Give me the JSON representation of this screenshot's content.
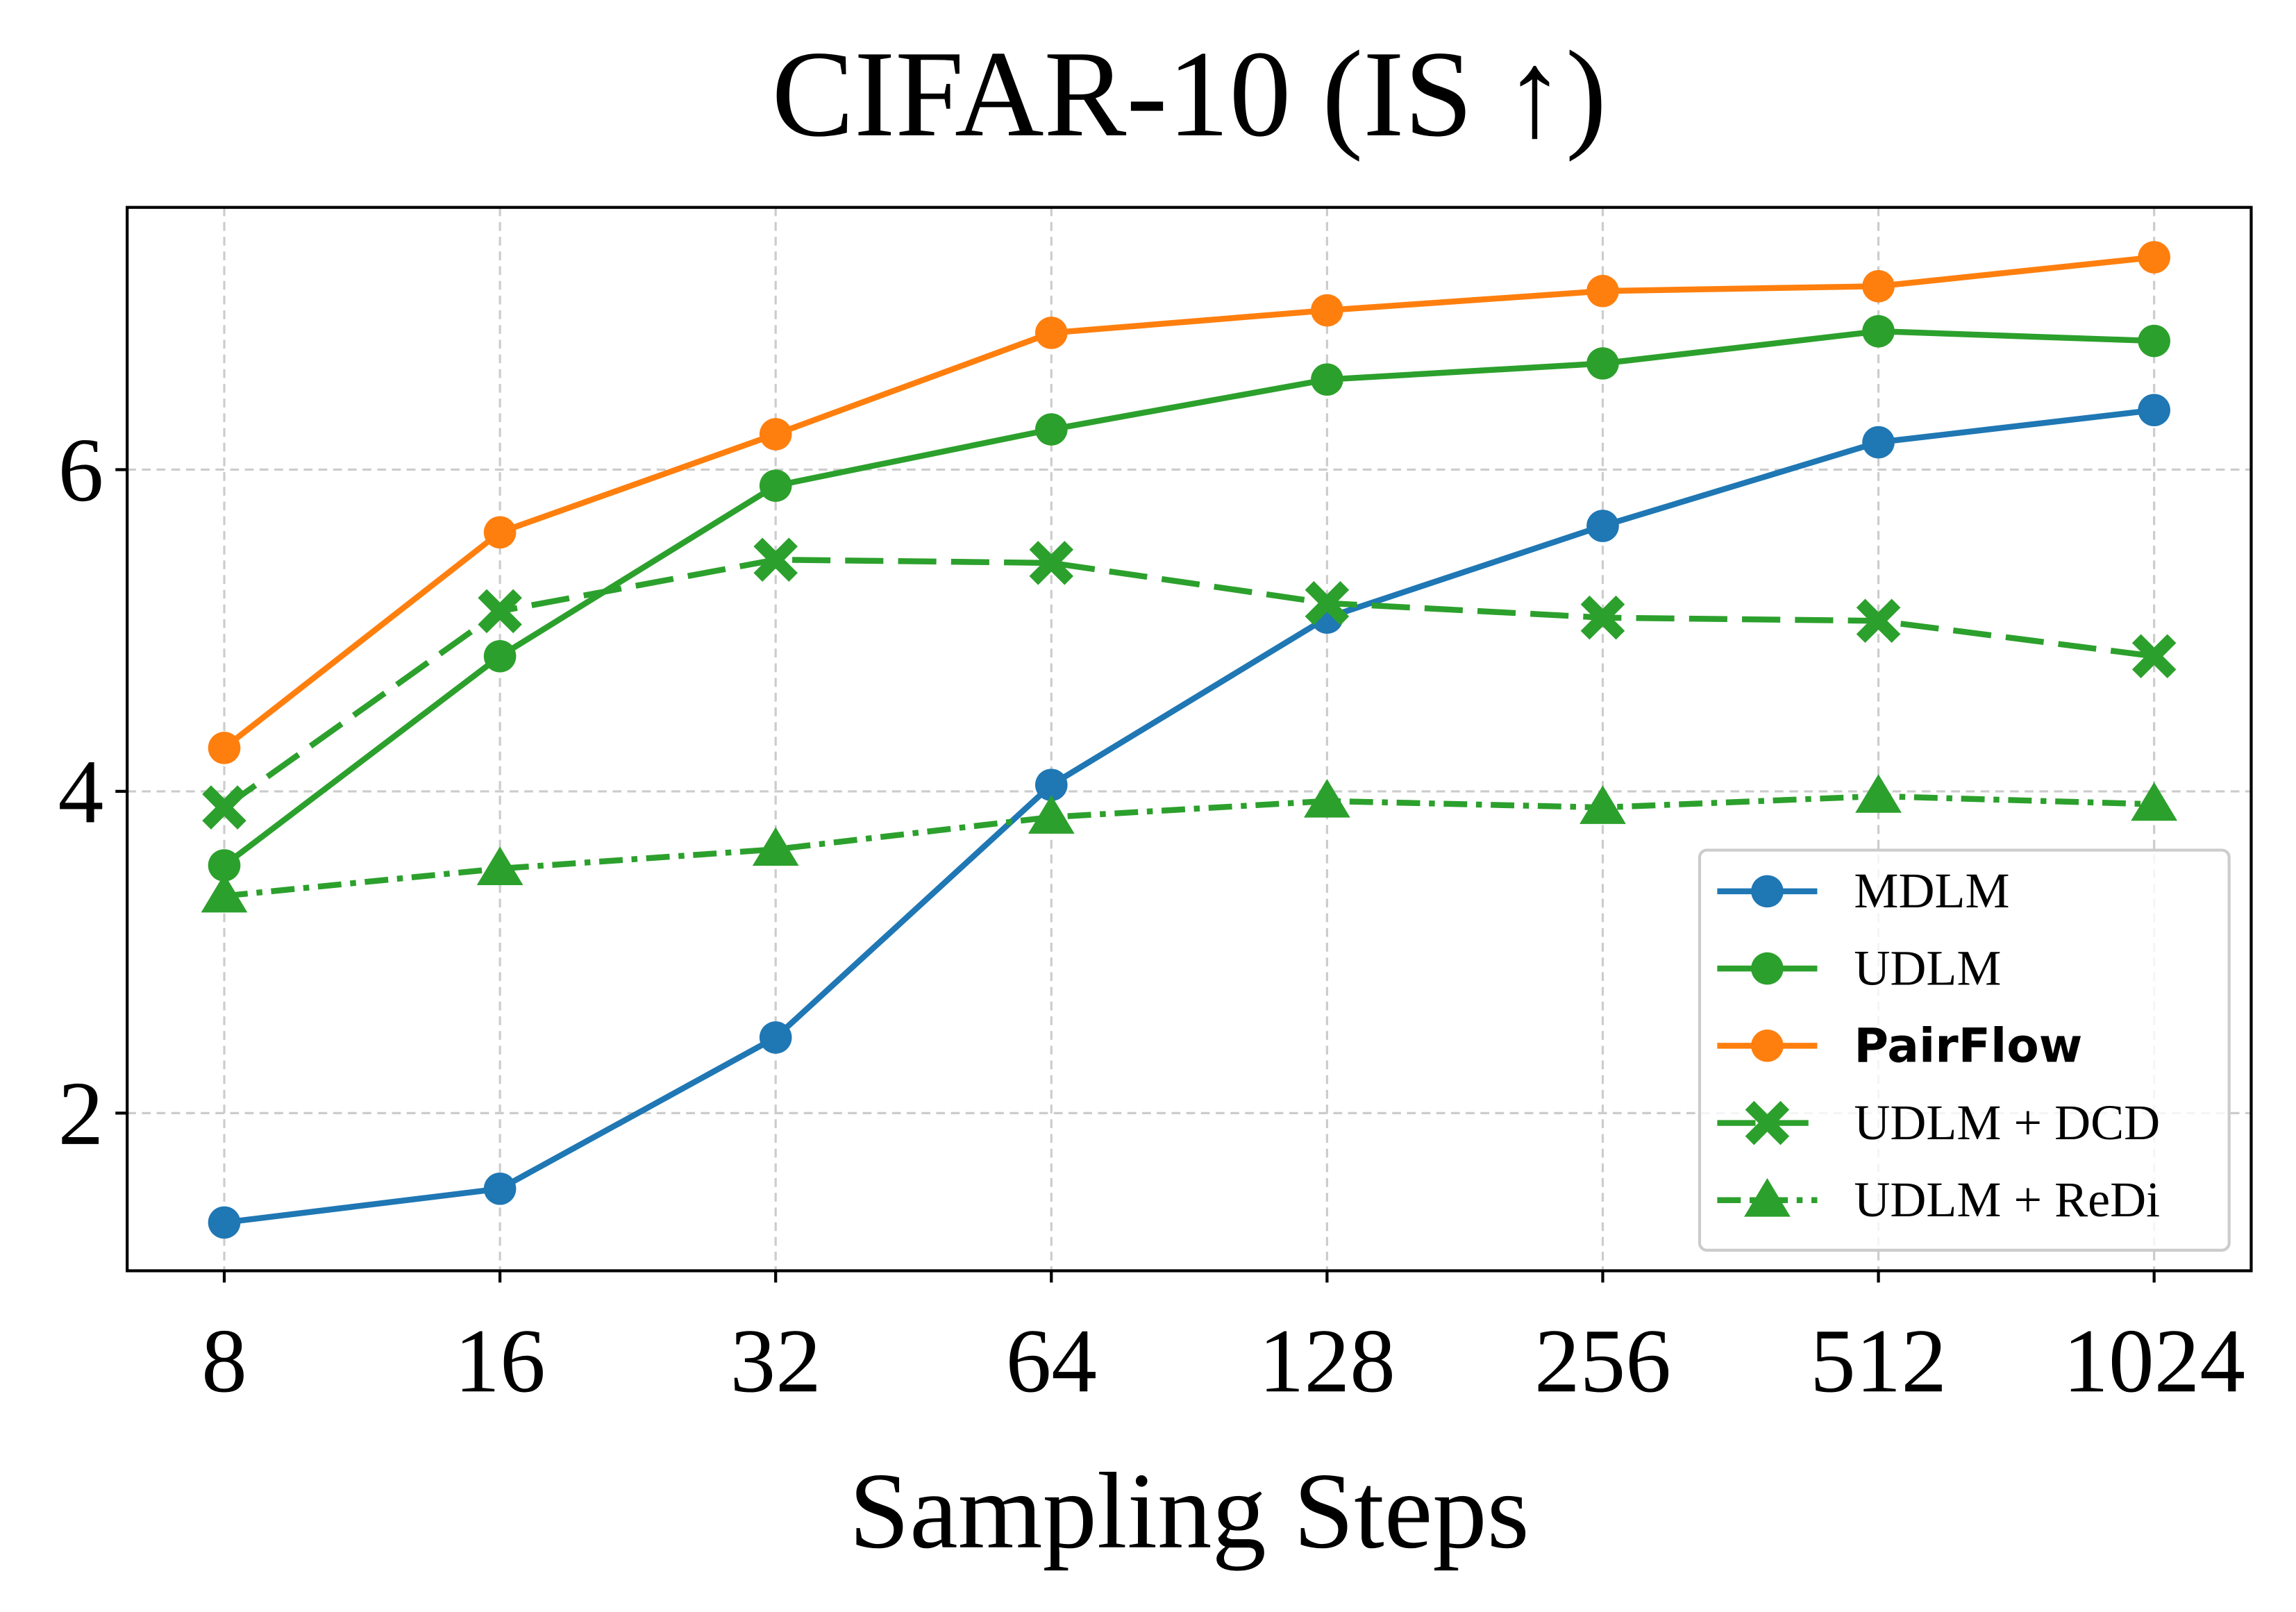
{
  "chart_data": {
    "type": "line",
    "title": "CIFAR-10 (IS ↑)",
    "xlabel": "Sampling Steps",
    "ylabel": "",
    "categories": [
      "8",
      "16",
      "32",
      "64",
      "128",
      "256",
      "512",
      "1024"
    ],
    "yticks": [
      2,
      4,
      6
    ],
    "ylim": [
      1.02,
      7.63
    ],
    "grid": true,
    "legend_position": "lower-right",
    "series": [
      {
        "name": "MDLM",
        "color": "#1f77b4",
        "marker": "circle",
        "linestyle": "solid",
        "bold": false,
        "values": [
          1.32,
          1.53,
          2.47,
          4.04,
          5.08,
          5.65,
          6.17,
          6.37
        ]
      },
      {
        "name": "UDLM",
        "color": "#2ca02c",
        "marker": "circle",
        "linestyle": "solid",
        "bold": false,
        "values": [
          3.54,
          4.84,
          5.9,
          6.25,
          6.56,
          6.66,
          6.86,
          6.8
        ]
      },
      {
        "name": "PairFlow",
        "color": "#ff7f0e",
        "marker": "circle",
        "linestyle": "solid",
        "bold": true,
        "values": [
          4.27,
          5.61,
          6.22,
          6.85,
          6.99,
          7.11,
          7.14,
          7.32
        ]
      },
      {
        "name": "UDLM + DCD",
        "color": "#2ca02c",
        "marker": "x",
        "linestyle": "dashed",
        "bold": false,
        "values": [
          3.9,
          5.12,
          5.44,
          5.42,
          5.17,
          5.08,
          5.06,
          4.84
        ]
      },
      {
        "name": "UDLM + ReDi",
        "color": "#2ca02c",
        "marker": "triangle",
        "linestyle": "dashdot",
        "bold": false,
        "values": [
          3.35,
          3.52,
          3.64,
          3.84,
          3.94,
          3.9,
          3.97,
          3.92
        ]
      }
    ]
  }
}
